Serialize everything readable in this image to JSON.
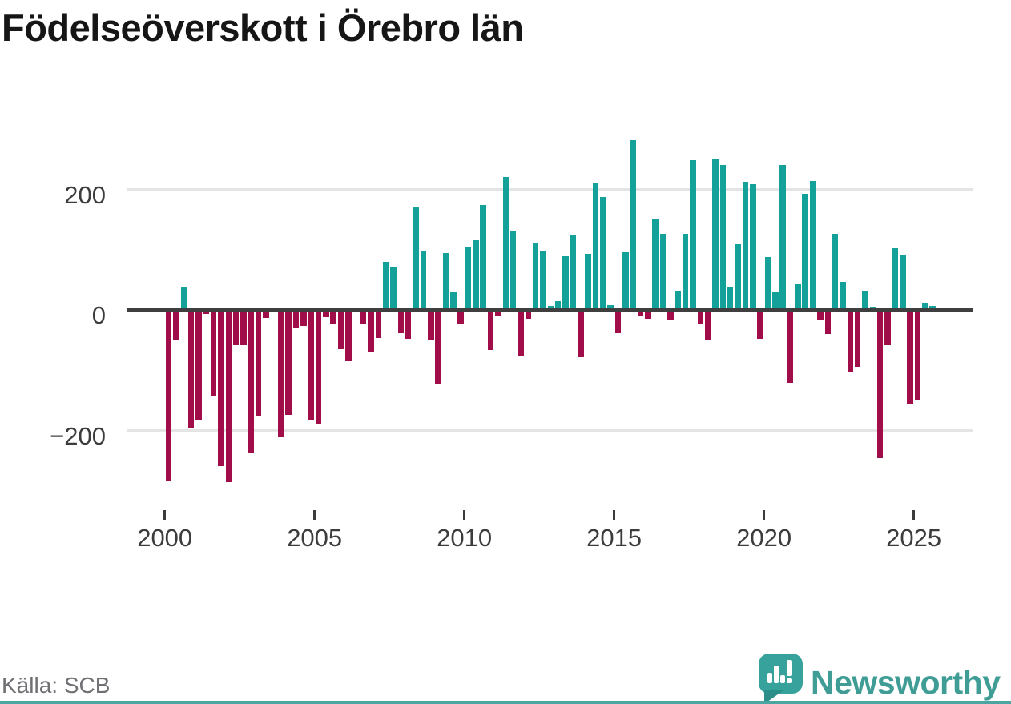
{
  "title": "Födelseöverskott i Örebro län",
  "source_note": "Källa: SCB",
  "branding": {
    "wordmark": "Newsworthy",
    "logo_icon": "speech-bubble-with-bar-chart-and-exclamation"
  },
  "colors": {
    "positive_bar": "#14a19a",
    "negative_bar": "#a00d49",
    "zero_axis": "#3f3f3f",
    "gridline": "#e4e4e4",
    "axis_text": "#3c3c3c",
    "title_text": "#161616",
    "source_text": "#6f6f74",
    "brand_teal": "#3f9d96",
    "footer_bar": "#4ba5a1"
  },
  "chart_data": {
    "type": "bar",
    "title": "Födelseöverskott i Örebro län",
    "x_start_year": 2000,
    "bars_per_year": 4,
    "period_start": "2000-Q1",
    "period_end": "2025-Q3",
    "grid": "horizontal",
    "legend": "none",
    "ylim": [
      -310,
      295
    ],
    "y_ticks": [
      {
        "value": 200,
        "label": "200"
      },
      {
        "value": 0,
        "label": "0"
      },
      {
        "value": -200,
        "label": "−200"
      }
    ],
    "x_ticks": [
      {
        "year": 2000,
        "label": "2000"
      },
      {
        "year": 2005,
        "label": "2005"
      },
      {
        "year": 2010,
        "label": "2010"
      },
      {
        "year": 2015,
        "label": "2015"
      },
      {
        "year": 2020,
        "label": "2020"
      },
      {
        "year": 2025,
        "label": "2025"
      }
    ],
    "values": [
      -285,
      -51,
      39,
      -196,
      -182,
      -7,
      -142,
      -259,
      -286,
      -59,
      -58,
      -238,
      -175,
      -13,
      3,
      -211,
      -174,
      -30,
      -26,
      -184,
      -189,
      -12,
      -24,
      -65,
      -85,
      0,
      -23,
      -70,
      -46,
      80,
      72,
      -39,
      -48,
      170,
      99,
      -50,
      -122,
      94,
      30,
      -24,
      105,
      115,
      174,
      -66,
      -11,
      221,
      130,
      -77,
      -14,
      110,
      97,
      6,
      14,
      89,
      125,
      -78,
      93,
      210,
      187,
      8,
      -38,
      96,
      282,
      -9,
      -14,
      150,
      126,
      -17,
      32,
      126,
      248,
      -24,
      -50,
      251,
      240,
      39,
      109,
      213,
      209,
      -48,
      88,
      31,
      240,
      -121,
      43,
      193,
      214,
      -16,
      -40,
      126,
      46,
      -102,
      -94,
      32,
      5,
      -246,
      -58,
      102,
      91,
      -156,
      -149,
      12,
      6
    ]
  }
}
